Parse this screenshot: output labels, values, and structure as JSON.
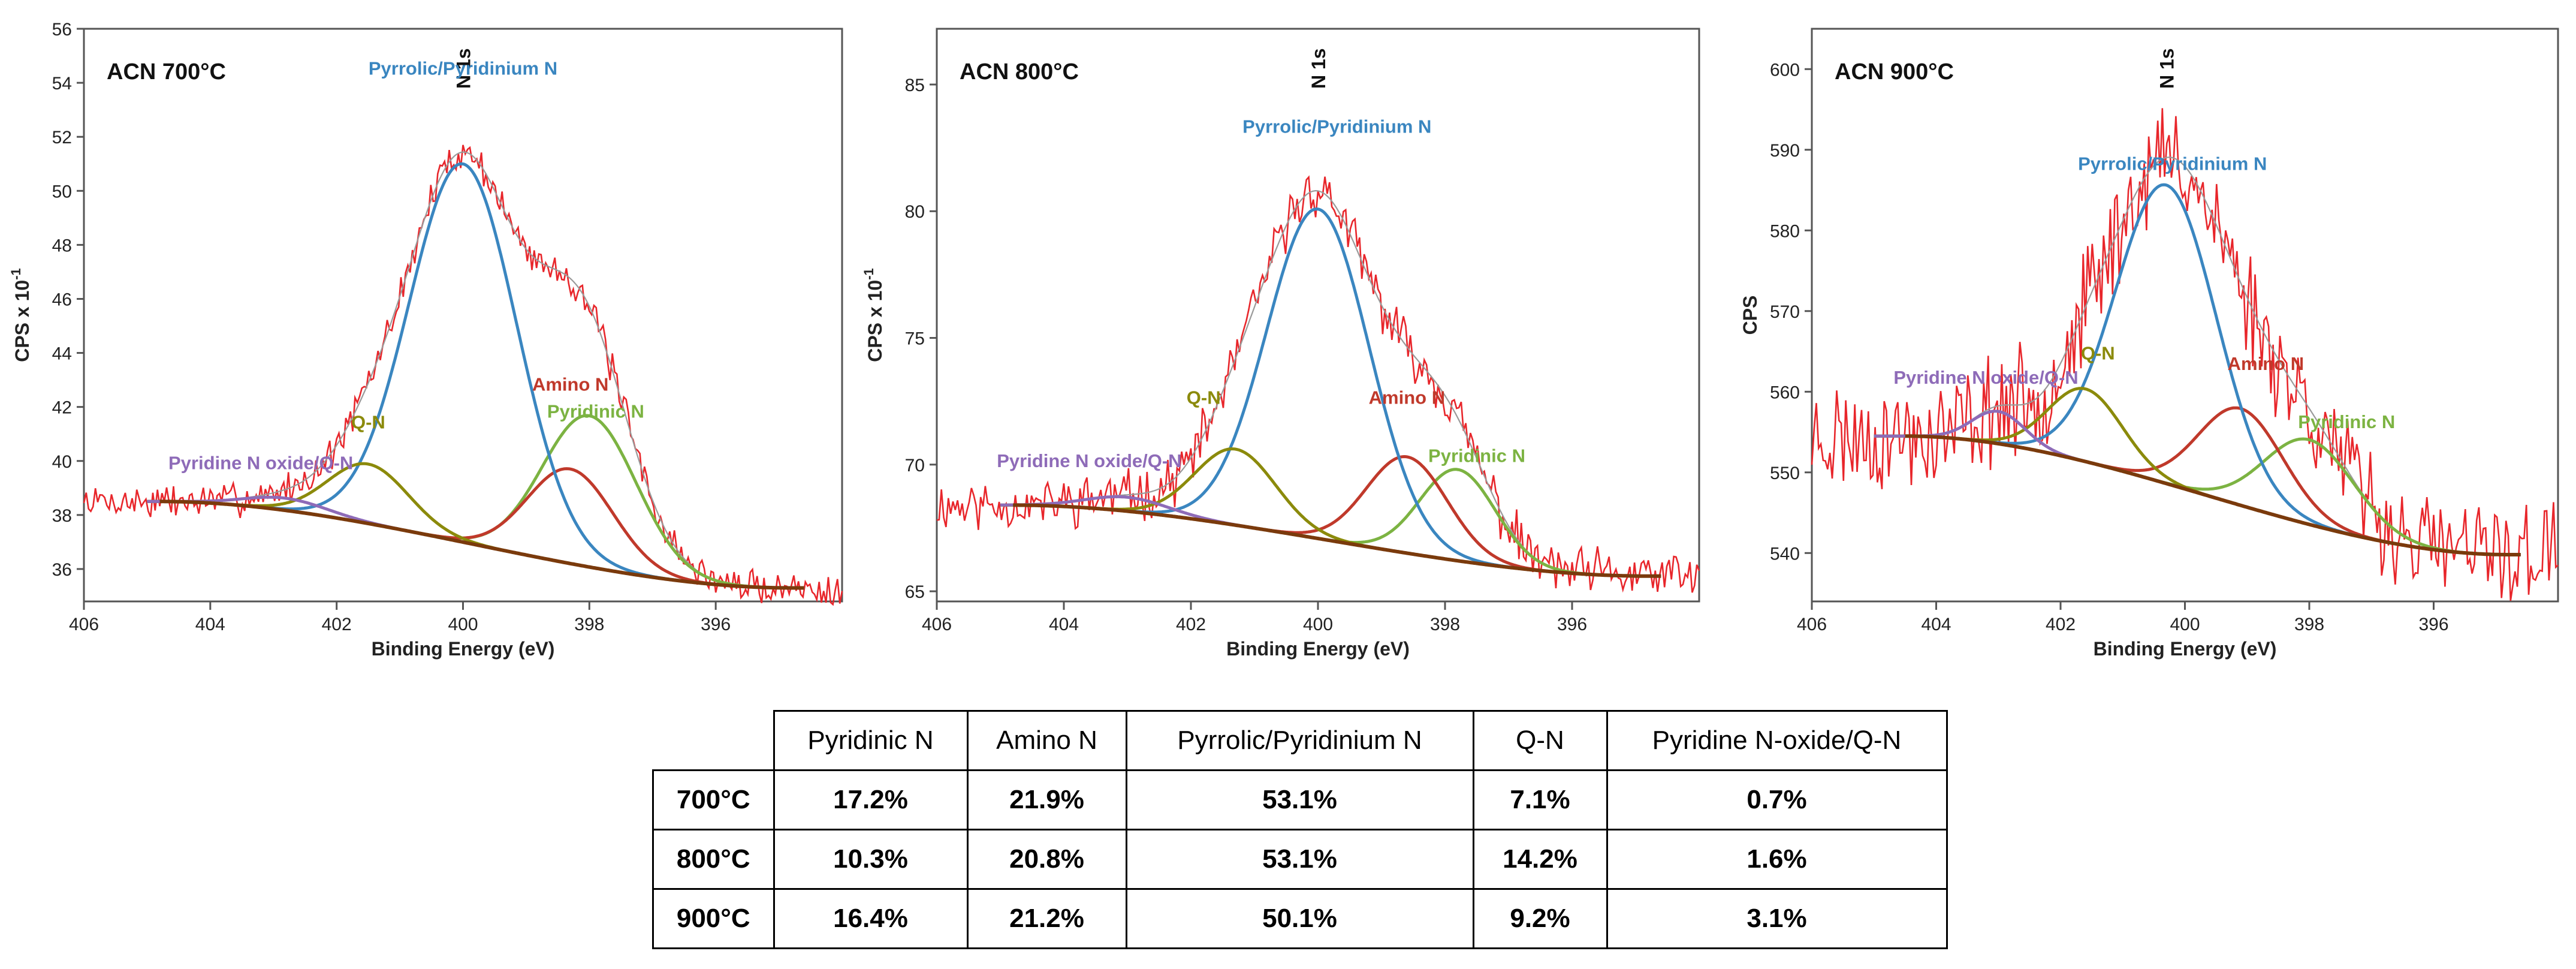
{
  "colors": {
    "raw": "#e8262b",
    "envelope": "#9a9a9a",
    "background": "#7a3a0c",
    "pyridinic": "#7cb342",
    "amino": "#c0392b",
    "pyrrolic": "#3a86c0",
    "qn": "#8b8a0b",
    "oxide": "#8e6bb8"
  },
  "chart_data": [
    {
      "type": "line",
      "title": "ACN 700°C",
      "peak_label": "N 1s",
      "xlabel": "Binding Energy (eV)",
      "ylabel": "CPS x 10",
      "ylabel_exp": "-1",
      "xlim": [
        406,
        394
      ],
      "xticks": [
        406,
        404,
        402,
        400,
        398,
        396
      ],
      "ylim": [
        34.8,
        56
      ],
      "yticks": [
        36,
        38,
        40,
        42,
        44,
        46,
        48,
        50,
        52,
        54,
        56
      ],
      "series": [
        {
          "name": "Pyridinic N",
          "center": 398.0,
          "fwhm": 1.75,
          "height": 5.6
        },
        {
          "name": "Amino N",
          "center": 398.3,
          "fwhm": 1.6,
          "height": 3.5
        },
        {
          "name": "Pyrrolic/Pyridinium N",
          "center": 400.0,
          "fwhm": 2.0,
          "height": 14.0
        },
        {
          "name": "Q-N",
          "center": 401.5,
          "fwhm": 1.5,
          "height": 2.2
        },
        {
          "name": "Pyridine N oxide/Q-N",
          "center": 402.8,
          "fwhm": 1.5,
          "height": 0.45
        }
      ],
      "background": {
        "start": 404.8,
        "end": 394.8,
        "high": 38.5,
        "low": 35.3
      },
      "noise": 0.5,
      "noise_seed": 7
    },
    {
      "type": "line",
      "title": "ACN 800°C",
      "peak_label": "N 1s",
      "xlabel": "Binding Energy (eV)",
      "ylabel": "CPS x 10",
      "ylabel_exp": "-1",
      "xlim": [
        406,
        394
      ],
      "xticks": [
        406,
        404,
        402,
        400,
        398,
        396
      ],
      "ylim": [
        64.6,
        87.2
      ],
      "yticks": [
        65,
        70,
        75,
        80,
        85
      ],
      "series": [
        {
          "name": "Pyridinic N",
          "center": 397.8,
          "fwhm": 1.4,
          "height": 3.6
        },
        {
          "name": "Amino N",
          "center": 398.6,
          "fwhm": 1.5,
          "height": 3.8
        },
        {
          "name": "Pyrrolic/Pyridinium N",
          "center": 400.0,
          "fwhm": 1.9,
          "height": 13.0
        },
        {
          "name": "Q-N",
          "center": 401.3,
          "fwhm": 1.5,
          "height": 3.0
        },
        {
          "name": "Pyridine N oxide/Q-N",
          "center": 403.0,
          "fwhm": 1.5,
          "height": 0.55
        }
      ],
      "background": {
        "start": 404.8,
        "end": 394.8,
        "high": 68.4,
        "low": 65.6
      },
      "noise": 0.8,
      "noise_seed": 11
    },
    {
      "type": "line",
      "title": "ACN 900°C",
      "peak_label": "N 1s",
      "xlabel": "Binding Energy (eV)",
      "ylabel": "CPS",
      "ylabel_exp": "",
      "xlim": [
        406,
        394
      ],
      "xticks": [
        406,
        404,
        402,
        400,
        398,
        396
      ],
      "ylim": [
        534,
        605
      ],
      "yticks": [
        540,
        550,
        560,
        570,
        580,
        590,
        600
      ],
      "series": [
        {
          "name": "Pyridinic N",
          "center": 398.0,
          "fwhm": 1.7,
          "height": 10.5
        },
        {
          "name": "Amino N",
          "center": 399.1,
          "fwhm": 1.6,
          "height": 12.0
        },
        {
          "name": "Pyrrolic/Pyridinium N",
          "center": 400.3,
          "fwhm": 1.9,
          "height": 37.0
        },
        {
          "name": "Q-N",
          "center": 401.6,
          "fwhm": 1.4,
          "height": 9.0
        },
        {
          "name": "Pyridine N oxide/Q-N",
          "center": 403.0,
          "fwhm": 1.0,
          "height": 4.0
        }
      ],
      "background": {
        "start": 404.5,
        "end": 394.8,
        "high": 554.5,
        "low": 539.8
      },
      "noise": 5.5,
      "noise_seed": 23
    }
  ],
  "table": {
    "headers": [
      "Pyridinic N",
      "Amino N",
      "Pyrrolic/Pyridinium N",
      "Q-N",
      "Pyridine N-oxide/Q-N"
    ],
    "rows": [
      {
        "label": "700°C",
        "values": [
          "17.2%",
          "21.9%",
          "53.1%",
          "7.1%",
          "0.7%"
        ]
      },
      {
        "label": "800°C",
        "values": [
          "10.3%",
          "20.8%",
          "53.1%",
          "14.2%",
          "1.6%"
        ]
      },
      {
        "label": "900°C",
        "values": [
          "16.4%",
          "21.2%",
          "50.1%",
          "9.2%",
          "3.1%"
        ]
      }
    ]
  }
}
